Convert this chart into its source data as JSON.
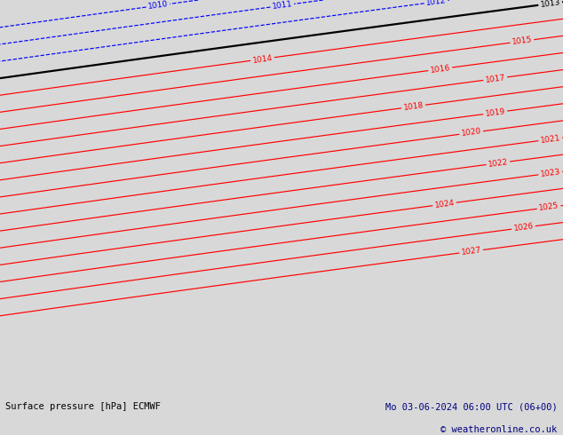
{
  "title_left": "Surface pressure [hPa] ECMWF",
  "title_right": "Mo 03-06-2024 06:00 UTC (06+00)",
  "copyright": "© weatheronline.co.uk",
  "bg_color": "#d8d8d8",
  "land_color": "#b8ddb0",
  "sea_color": "#d8d8d8",
  "figsize": [
    6.34,
    4.9
  ],
  "dpi": 100,
  "lon_min": -11.5,
  "lon_max": 3.5,
  "lat_min": 47.5,
  "lat_max": 62.5,
  "blue_levels": [
    1010,
    1011,
    1012
  ],
  "black_level": 1013,
  "red_levels": [
    1014,
    1015,
    1016,
    1017,
    1018,
    1019,
    1020,
    1021,
    1022,
    1023,
    1024,
    1025,
    1026,
    1027
  ],
  "label_fontsize": 6.5,
  "footer_fontsize": 7.5,
  "blue_lw": 0.85,
  "black_lw": 1.6,
  "red_lw": 0.85,
  "footer_text_color": "#00007f",
  "footer_left_color": "#000000"
}
